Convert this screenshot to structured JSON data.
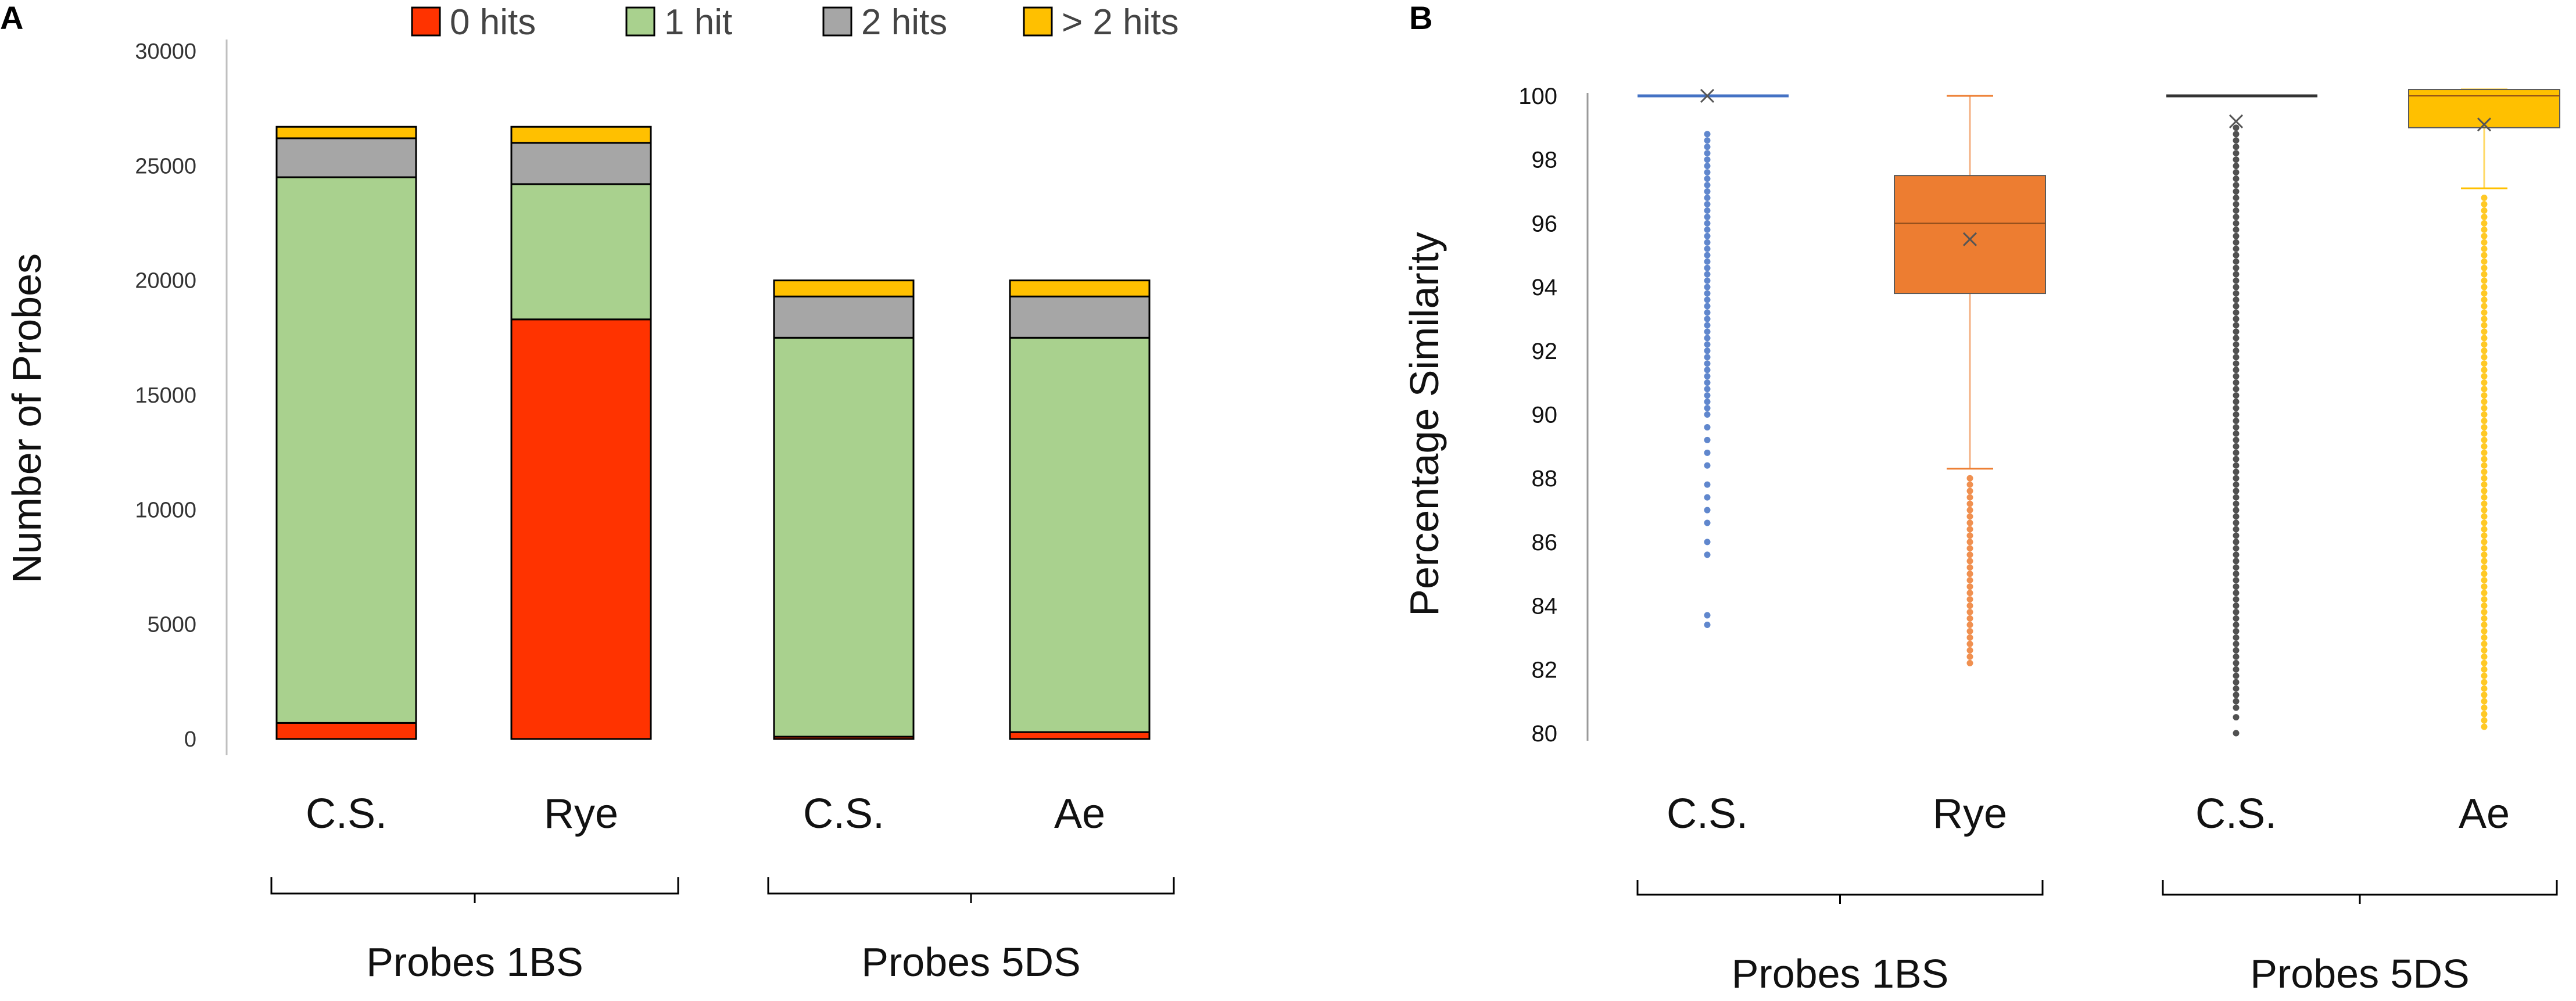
{
  "panelA": {
    "letter": "A",
    "chart_data": {
      "type": "bar",
      "stacked": true,
      "categories": [
        "C.S.",
        "Rye",
        "C.S.",
        "Ae"
      ],
      "groups": [
        {
          "label": "Probes 1BS",
          "categories": [
            "C.S.",
            "Rye"
          ]
        },
        {
          "label": "Probes 5DS",
          "categories": [
            "C.S.",
            "Ae"
          ]
        }
      ],
      "series": [
        {
          "name": "0 hits",
          "color": "#ff3300",
          "values": [
            700,
            18300,
            100,
            300
          ]
        },
        {
          "name": "1 hit",
          "color": "#a9d18e",
          "values": [
            23800,
            5900,
            17400,
            17200
          ]
        },
        {
          "name": "2 hits",
          "color": "#a6a6a6",
          "values": [
            1700,
            1800,
            1800,
            1800
          ]
        },
        {
          "name": "> 2 hits",
          "color": "#ffc000",
          "values": [
            500,
            700,
            700,
            700
          ]
        }
      ],
      "ylabel": "Number of Probes",
      "xlabel": "",
      "ylim": [
        0,
        30000
      ],
      "yticks": [
        "0",
        "5000",
        "10000",
        "15000",
        "20000",
        "25000",
        "30000"
      ],
      "legend_position": "top"
    }
  },
  "panelB": {
    "letter": "B",
    "chart_data": {
      "type": "box",
      "categories": [
        "C.S.",
        "Rye",
        "C.S.",
        "Ae"
      ],
      "groups": [
        {
          "label": "Probes 1BS",
          "categories": [
            "C.S.",
            "Rye"
          ]
        },
        {
          "label": "Probes 5DS",
          "categories": [
            "C.S.",
            "Ae"
          ]
        }
      ],
      "ylabel": "Percentage Similarity",
      "xlabel": "",
      "ylim": [
        80,
        100.6
      ],
      "yticks": [
        "80",
        "82",
        "84",
        "86",
        "88",
        "90",
        "92",
        "94",
        "96",
        "98",
        "100"
      ],
      "boxes": [
        {
          "name": "C.S. (1BS)",
          "color": "#4472c4",
          "q1": 100,
          "median": 100,
          "q3": 100,
          "whisker_low": 100,
          "whisker_high": 100,
          "mean": 100,
          "outliers": [
            98.8,
            98.6,
            98.4,
            98.2,
            98.0,
            97.8,
            97.6,
            97.4,
            97.2,
            97.0,
            96.8,
            96.6,
            96.4,
            96.2,
            96.0,
            95.8,
            95.6,
            95.4,
            95.2,
            95.0,
            94.8,
            94.6,
            94.4,
            94.2,
            94.0,
            93.8,
            93.6,
            93.4,
            93.2,
            93.0,
            92.8,
            92.6,
            92.4,
            92.2,
            92.0,
            91.8,
            91.6,
            91.4,
            91.2,
            91.0,
            90.8,
            90.6,
            90.4,
            90.2,
            90.0,
            89.6,
            89.2,
            88.8,
            88.4,
            87.8,
            87.4,
            87.0,
            86.6,
            86.0,
            85.6,
            83.7,
            83.4
          ]
        },
        {
          "name": "Rye",
          "color": "#ed7d31",
          "q1": 93.8,
          "median": 96,
          "q3": 97.5,
          "whisker_low": 88.3,
          "whisker_high": 100,
          "mean": 95.5,
          "outliers": [
            88.0,
            87.8,
            87.6,
            87.4,
            87.2,
            87.0,
            86.8,
            86.6,
            86.4,
            86.2,
            86.0,
            85.8,
            85.6,
            85.4,
            85.2,
            85.0,
            84.8,
            84.6,
            84.4,
            84.2,
            84.0,
            83.8,
            83.6,
            83.4,
            83.2,
            83.0,
            82.8,
            82.6,
            82.4,
            82.2
          ]
        },
        {
          "name": "C.S. (5DS)",
          "color": "#333333",
          "q1": 100,
          "median": 100,
          "q3": 100,
          "whisker_low": 100,
          "whisker_high": 100,
          "mean": 99.2,
          "outliers": [
            99.0,
            98.8,
            98.6,
            98.4,
            98.2,
            98.0,
            97.8,
            97.6,
            97.4,
            97.2,
            97.0,
            96.8,
            96.6,
            96.4,
            96.2,
            96.0,
            95.8,
            95.6,
            95.4,
            95.2,
            95.0,
            94.8,
            94.6,
            94.4,
            94.2,
            94.0,
            93.8,
            93.6,
            93.4,
            93.2,
            93.0,
            92.8,
            92.6,
            92.4,
            92.2,
            92.0,
            91.8,
            91.6,
            91.4,
            91.2,
            91.0,
            90.8,
            90.6,
            90.4,
            90.2,
            90.0,
            89.8,
            89.6,
            89.4,
            89.2,
            89.0,
            88.8,
            88.6,
            88.4,
            88.2,
            88.0,
            87.8,
            87.6,
            87.4,
            87.2,
            87.0,
            86.8,
            86.6,
            86.4,
            86.2,
            86.0,
            85.8,
            85.6,
            85.4,
            85.2,
            85.0,
            84.8,
            84.6,
            84.4,
            84.2,
            84.0,
            83.8,
            83.6,
            83.4,
            83.2,
            83.0,
            82.8,
            82.6,
            82.4,
            82.2,
            82.0,
            81.8,
            81.6,
            81.4,
            81.2,
            81.0,
            80.8,
            80.5,
            80.0
          ]
        },
        {
          "name": "Ae",
          "color": "#ffc000",
          "q1": 99,
          "median": 100,
          "q3": 100.2,
          "whisker_low": 97.1,
          "whisker_high": 100.2,
          "mean": 99.1,
          "outliers": [
            96.8,
            96.6,
            96.4,
            96.2,
            96.0,
            95.8,
            95.6,
            95.4,
            95.2,
            95.0,
            94.8,
            94.6,
            94.4,
            94.2,
            94.0,
            93.8,
            93.6,
            93.4,
            93.2,
            93.0,
            92.8,
            92.6,
            92.4,
            92.2,
            92.0,
            91.8,
            91.6,
            91.4,
            91.2,
            91.0,
            90.8,
            90.6,
            90.4,
            90.2,
            90.0,
            89.8,
            89.6,
            89.4,
            89.2,
            89.0,
            88.8,
            88.6,
            88.4,
            88.2,
            88.0,
            87.8,
            87.6,
            87.4,
            87.2,
            87.0,
            86.8,
            86.6,
            86.4,
            86.2,
            86.0,
            85.8,
            85.6,
            85.4,
            85.2,
            85.0,
            84.8,
            84.6,
            84.4,
            84.2,
            84.0,
            83.8,
            83.6,
            83.4,
            83.2,
            83.0,
            82.8,
            82.6,
            82.4,
            82.2,
            82.0,
            81.8,
            81.6,
            81.4,
            81.2,
            81.0,
            80.8,
            80.6,
            80.4,
            80.2
          ]
        }
      ]
    }
  }
}
